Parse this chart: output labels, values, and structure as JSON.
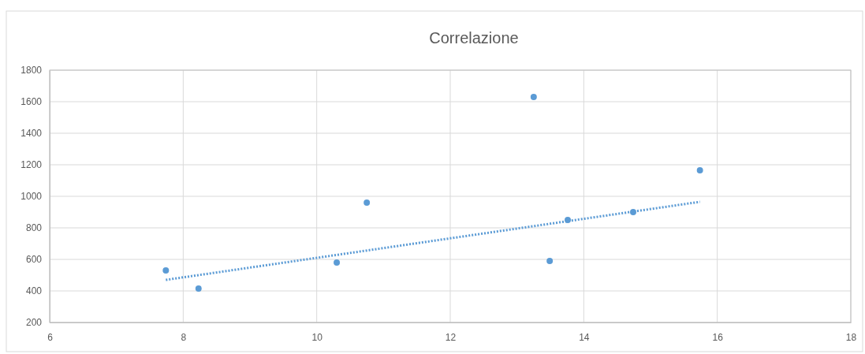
{
  "chart_data": {
    "type": "scatter",
    "title": "Correlazione",
    "xlim": [
      6,
      18
    ],
    "xticks": [
      6,
      8,
      10,
      12,
      14,
      16,
      18
    ],
    "ylim": [
      200,
      1800
    ],
    "yticks": [
      200,
      400,
      600,
      800,
      1000,
      1200,
      1400,
      1600,
      1800
    ],
    "grid": true,
    "series": [
      {
        "color": "#5b9bd5",
        "marker": "circle",
        "x": [
          7.74,
          8.23,
          10.3,
          10.75,
          13.25,
          13.49,
          13.76,
          14.74,
          15.74
        ],
        "values": [
          530,
          415,
          580,
          960,
          1630,
          590,
          850,
          900,
          1165
        ]
      },
      {
        "type": "line",
        "color": "#5b9bd5",
        "marker": "none",
        "line_style": "dotted",
        "x": [
          7.74,
          15.74
        ],
        "values": [
          470,
          965
        ]
      }
    ]
  }
}
